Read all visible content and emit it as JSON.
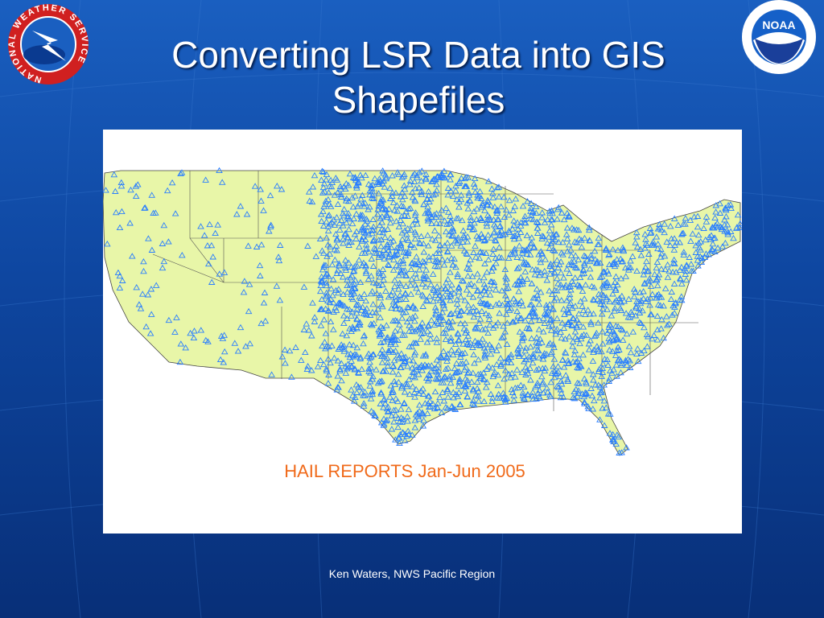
{
  "slide": {
    "title": "Converting LSR Data into GIS Shapefiles",
    "map_caption": "HAIL REPORTS Jan-Jun 2005",
    "footer": "Ken Waters, NWS Pacific Region",
    "logos": {
      "left": "NATIONAL WEATHER SERVICE",
      "right": "NOAA"
    }
  }
}
